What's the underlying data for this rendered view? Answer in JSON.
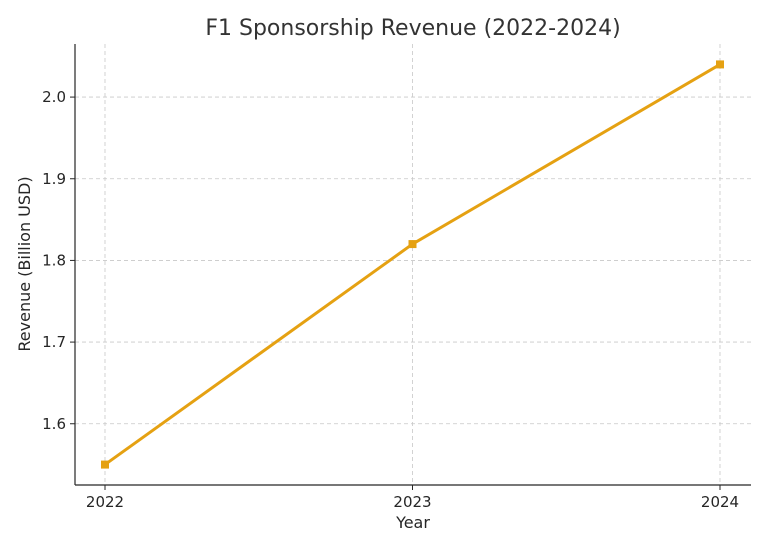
{
  "chart_data": {
    "type": "line",
    "title": "F1 Sponsorship Revenue (2022-2024)",
    "xlabel": "Year",
    "ylabel": "Revenue (Billion USD)",
    "categories": [
      "2022",
      "2023",
      "2024"
    ],
    "series": [
      {
        "values": [
          1.55,
          1.82,
          2.04
        ],
        "color": "#E5A112",
        "marker": "square"
      }
    ],
    "yticks": [
      1.6,
      1.7,
      1.8,
      1.9,
      2.0
    ],
    "ytick_labels": [
      "1.6",
      "1.7",
      "1.8",
      "1.9",
      "2.0"
    ],
    "ylim": [
      1.525,
      2.065
    ],
    "grid": true,
    "legend": "none"
  }
}
